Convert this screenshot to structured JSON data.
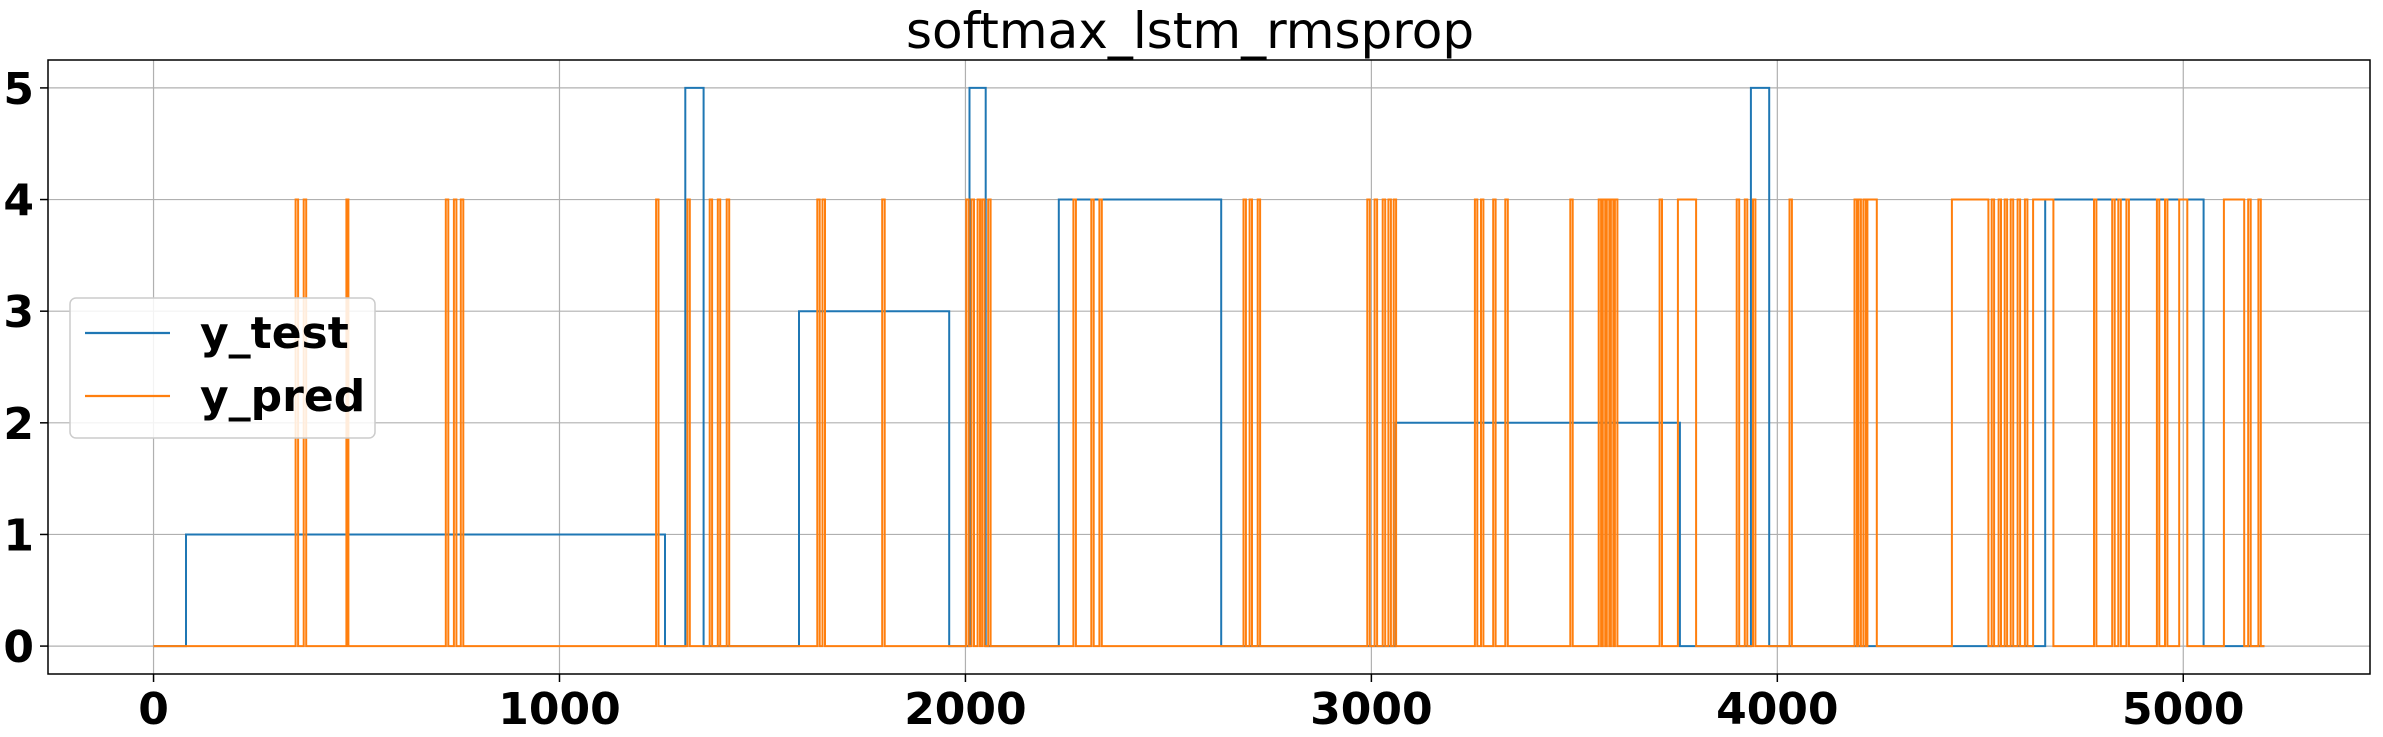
{
  "chart_data": {
    "type": "line",
    "title": "softmax_lstm_rmsprop",
    "xlabel": "",
    "ylabel": "",
    "xlim": [
      -260,
      5460
    ],
    "ylim": [
      -0.25,
      5.25
    ],
    "xticks": [
      0,
      1000,
      2000,
      3000,
      4000,
      5000
    ],
    "yticks": [
      0,
      1,
      2,
      3,
      4,
      5
    ],
    "grid": true,
    "legend_position": "center-left",
    "series": [
      {
        "name": "y_test",
        "color": "#1f77b4",
        "step": "post",
        "x": [
          0,
          80,
          1260,
          1310,
          1355,
          1590,
          1960,
          2010,
          2050,
          2230,
          2630,
          3060,
          3760,
          3935,
          3980,
          4660,
          5050,
          5200
        ],
        "y": [
          0,
          1,
          0,
          5,
          0,
          3,
          0,
          5,
          0,
          4,
          0,
          2,
          0,
          5,
          0,
          4,
          0,
          0
        ]
      },
      {
        "name": "y_pred",
        "color": "#ff7f0e",
        "step": "post",
        "x": [
          0,
          350,
          356,
          370,
          376,
          475,
          480,
          720,
          726,
          740,
          746,
          757,
          763,
          1238,
          1244,
          1315,
          1321,
          1370,
          1376,
          1390,
          1396,
          1412,
          1418,
          1635,
          1641,
          1648,
          1654,
          1795,
          1801,
          2002,
          2008,
          2015,
          2021,
          2030,
          2036,
          2041,
          2047,
          2056,
          2062,
          2266,
          2272,
          2310,
          2316,
          2330,
          2336,
          2685,
          2691,
          2700,
          2706,
          2720,
          2726,
          2990,
          2996,
          3008,
          3014,
          3028,
          3034,
          3042,
          3048,
          3055,
          3061,
          3255,
          3261,
          3270,
          3276,
          3300,
          3306,
          3330,
          3336,
          3490,
          3496,
          3560,
          3566,
          3570,
          3576,
          3580,
          3586,
          3590,
          3596,
          3600,
          3606,
          3710,
          3716,
          3755,
          3800,
          3900,
          3906,
          3920,
          3926,
          3940,
          3946,
          4030,
          4036,
          4190,
          4196,
          4200,
          4206,
          4212,
          4218,
          4222,
          4245,
          4430,
          4520,
          4528,
          4534,
          4545,
          4551,
          4560,
          4566,
          4575,
          4581,
          4592,
          4598,
          4610,
          4616,
          4630,
          4680,
          4780,
          4786,
          4825,
          4831,
          4840,
          4846,
          4860,
          4866,
          4935,
          4941,
          4955,
          4961,
          4990,
          5010,
          5100,
          5150,
          5160,
          5166,
          5185,
          5191,
          5200
        ],
        "y": [
          0,
          4,
          0,
          4,
          0,
          4,
          0,
          4,
          0,
          4,
          0,
          4,
          0,
          4,
          0,
          4,
          0,
          4,
          0,
          4,
          0,
          4,
          0,
          4,
          0,
          4,
          0,
          4,
          0,
          4,
          0,
          4,
          0,
          4,
          0,
          4,
          0,
          4,
          0,
          4,
          0,
          4,
          0,
          4,
          0,
          4,
          0,
          4,
          0,
          4,
          0,
          4,
          0,
          4,
          0,
          4,
          0,
          4,
          0,
          4,
          0,
          4,
          0,
          4,
          0,
          4,
          0,
          4,
          0,
          4,
          0,
          4,
          0,
          4,
          0,
          4,
          0,
          4,
          0,
          4,
          0,
          4,
          0,
          4,
          0,
          4,
          0,
          4,
          0,
          4,
          0,
          4,
          0,
          4,
          0,
          4,
          0,
          4,
          0,
          4,
          0,
          4,
          0,
          4,
          0,
          4,
          0,
          4,
          0,
          4,
          0,
          4,
          0,
          4,
          0,
          4,
          0,
          4,
          0,
          4,
          0,
          4,
          0,
          4,
          0,
          4,
          0,
          4,
          0,
          4,
          0,
          4,
          0,
          4,
          0,
          4,
          0,
          0
        ]
      }
    ]
  }
}
